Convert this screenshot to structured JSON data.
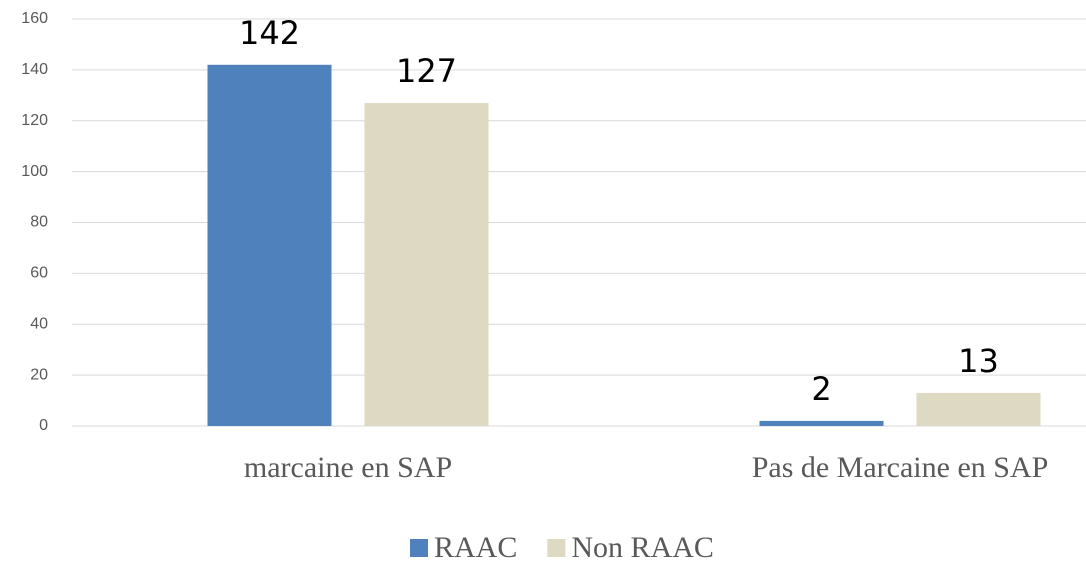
{
  "chart_data": {
    "type": "bar",
    "categories": [
      "marcaine en SAP",
      "Pas de Marcaine en SAP"
    ],
    "series": [
      {
        "name": "RAAC",
        "color": "#4f81bd",
        "values": [
          142,
          2
        ]
      },
      {
        "name": "Non RAAC",
        "color": "#ddd9c3",
        "values": [
          127,
          13
        ]
      }
    ],
    "ylim": [
      0,
      160
    ],
    "yticks": [
      0,
      20,
      40,
      60,
      80,
      100,
      120,
      140,
      160
    ],
    "grid": true,
    "legend": "bottom"
  }
}
